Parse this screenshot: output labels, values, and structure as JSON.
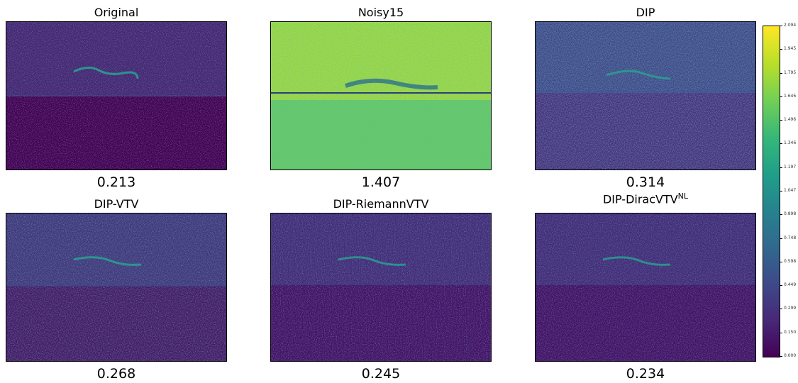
{
  "panels": [
    {
      "title": "Original",
      "value": "0.213",
      "noise": "low"
    },
    {
      "title": "Noisy15",
      "value": "1.407",
      "noise": "high"
    },
    {
      "title": "DIP",
      "value": "0.314",
      "noise": "mid"
    },
    {
      "title": "DIP-VTV",
      "value": "0.268",
      "noise": "mid"
    },
    {
      "title": "DIP-RiemannVTV",
      "value": "0.245",
      "noise": "low"
    },
    {
      "title": "DIP-DiracVTV",
      "title_sup": "NL",
      "value": "0.234",
      "noise": "low"
    }
  ],
  "colorbar": {
    "colormap": "viridis",
    "ticks": [
      "2.094",
      "1.945",
      "1.795",
      "1.646",
      "1.496",
      "1.346",
      "1.197",
      "1.047",
      "0.898",
      "0.748",
      "0.598",
      "0.449",
      "0.299",
      "0.150",
      "0.000"
    ]
  },
  "colors": {
    "low": "#440154",
    "mid": "#3b528b",
    "high": "#b5de2b"
  }
}
